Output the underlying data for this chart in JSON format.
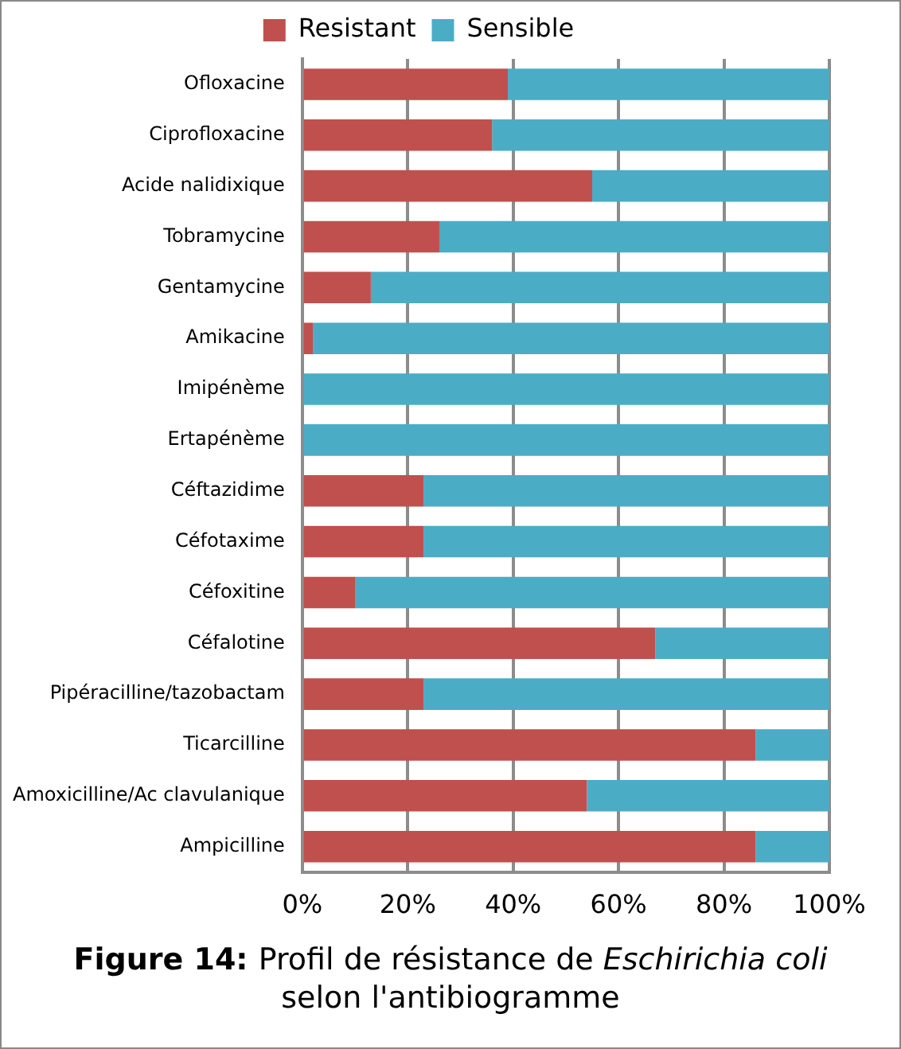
{
  "chart_data": {
    "type": "bar",
    "orientation": "horizontal",
    "stacked": true,
    "categories": [
      "Ofloxacine",
      "Ciprofloxacine",
      "Acide nalidixique",
      "Tobramycine",
      "Gentamycine",
      "Amikacine",
      "Imipénème",
      "Ertapénème",
      "Céftazidime",
      "Céfotaxime",
      "Céfoxitine",
      "Céfalotine",
      "Pipéracilline/tazobactam",
      "Ticarcilline",
      "Amoxicilline/Ac clavulanique",
      "Ampicilline"
    ],
    "series": [
      {
        "name": "Resistant",
        "color": "#c0504d",
        "values": [
          39,
          36,
          55,
          26,
          13,
          2,
          0,
          0,
          23,
          23,
          10,
          67,
          23,
          86,
          54,
          86
        ]
      },
      {
        "name": "Sensible",
        "color": "#4bacc6",
        "values": [
          61,
          64,
          45,
          74,
          87,
          98,
          100,
          100,
          77,
          77,
          90,
          33,
          77,
          14,
          46,
          14
        ]
      }
    ],
    "xlim": [
      0,
      100
    ],
    "xticks": [
      {
        "value": 0,
        "label": "0%"
      },
      {
        "value": 20,
        "label": "20%"
      },
      {
        "value": 40,
        "label": "40%"
      },
      {
        "value": 60,
        "label": "60%"
      },
      {
        "value": 80,
        "label": "80%"
      },
      {
        "value": 100,
        "label": "100%"
      }
    ],
    "grid": "x",
    "legend": "top",
    "annotations": [
      "Figure 14:",
      "Profil de résistance de",
      "Eschirichia coli",
      "selon l'antibiogramme"
    ]
  }
}
